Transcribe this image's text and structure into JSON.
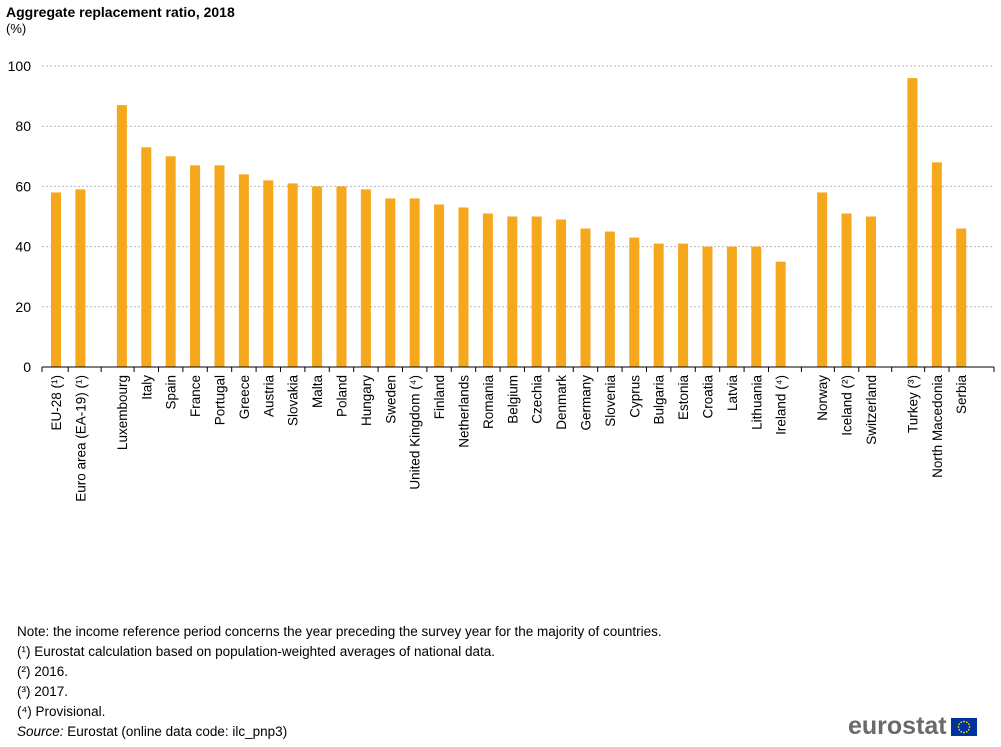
{
  "chart_data": {
    "type": "bar",
    "title": "Aggregate replacement ratio, 2018",
    "unit": "(%)",
    "ylim": [
      0,
      100
    ],
    "yticks": [
      0,
      20,
      40,
      60,
      80,
      100
    ],
    "grid": true,
    "legend": "none",
    "bar_color": "#f6a81c",
    "categories": [
      "EU-28 (¹)",
      "Euro area (EA-19) (¹)",
      "Luxembourg",
      "Italy",
      "Spain",
      "France",
      "Portugal",
      "Greece",
      "Austria",
      "Slovakia",
      "Malta",
      "Poland",
      "Hungary",
      "Sweden",
      "United Kingdom (⁴)",
      "Finland",
      "Netherlands",
      "Romania",
      "Belgium",
      "Czechia",
      "Denmark",
      "Germany",
      "Slovenia",
      "Cyprus",
      "Bulgaria",
      "Estonia",
      "Croatia",
      "Latvia",
      "Lithuania",
      "Ireland (⁴)",
      "Norway",
      "Iceland (²)",
      "Switzerland",
      "Turkey (³)",
      "North Macedonia",
      "Serbia"
    ],
    "values": [
      58,
      59,
      87,
      73,
      70,
      67,
      67,
      64,
      62,
      61,
      60,
      60,
      59,
      56,
      56,
      54,
      53,
      51,
      50,
      50,
      49,
      46,
      45,
      43,
      41,
      41,
      40,
      40,
      40,
      35,
      58,
      51,
      50,
      96,
      68,
      46
    ],
    "groups": [
      2,
      28,
      3,
      3
    ]
  },
  "notes": [
    "Note: the income reference period concerns the year preceding the survey year for the majority of countries.",
    "(¹) Eurostat calculation based on population-weighted averages of national data.",
    "(²) 2016.",
    "(³) 2017.",
    "(⁴) Provisional."
  ],
  "source": {
    "label": "Source:",
    "text": "Eurostat (online data code: ilc_pnp3)"
  },
  "logo": {
    "text": "eurostat",
    "flag_colors": [
      "#003399",
      "#ffcc00"
    ]
  }
}
